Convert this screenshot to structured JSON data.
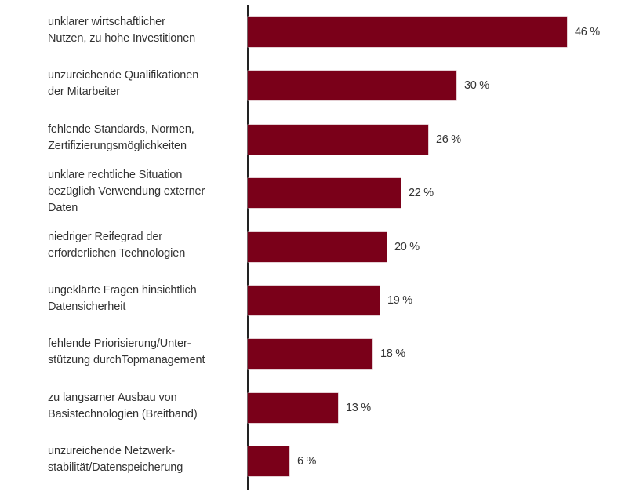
{
  "chart_data": {
    "type": "bar",
    "orientation": "horizontal",
    "title": "",
    "xlabel": "",
    "ylabel": "",
    "bar_color": "#7a0019",
    "grid": false,
    "legend": null,
    "xlim": [
      0,
      50
    ],
    "categories": [
      "unklarer wirtschaftlicher\nNutzen, zu hohe Investitionen",
      "unzureichende Qualifikationen\nder Mitarbeiter",
      "fehlende Standards, Normen,\nZertifizierungsmöglichkeiten",
      "unklare rechtliche Situation\nbezüglich Verwendung externer\nDaten",
      "niedriger Reifegrad der\nerforderlichen Technologien",
      "ungeklärte Fragen hinsichtlich\nDatensicherheit",
      "fehlende Priorisierung/Unter-\nstützung durchTopmanagement",
      "zu langsamer Ausbau von\nBasistechnologien (Breitband)",
      "unzureichende Netzwerk-\nstabilität/Datenspeicherung"
    ],
    "values": [
      46,
      30,
      26,
      22,
      20,
      19,
      18,
      13,
      6
    ],
    "value_labels": [
      "46 %",
      "30 %",
      "26 %",
      "22 %",
      "20 %",
      "19 %",
      "18 %",
      "13 %",
      "6 %"
    ],
    "unit": "%"
  }
}
